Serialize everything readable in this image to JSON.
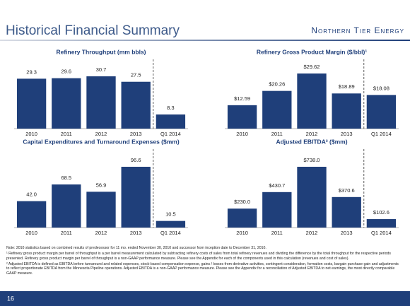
{
  "title": "Historical Financial Summary",
  "logo": "Northern Tier Energy",
  "chart_data": [
    {
      "type": "bar",
      "title": "Refinery Throughput (mm bbls)",
      "color": "#1f3f7a",
      "categories": [
        "2010",
        "2011",
        "2012",
        "2013",
        "Q1 2014"
      ],
      "values": [
        29.3,
        29.6,
        30.7,
        27.5,
        8.3
      ]
    },
    {
      "type": "bar",
      "title": "Refinery Gross Product Margin ($/bbl)¹",
      "color": "#1f3f7a",
      "categories": [
        "2010",
        "2011",
        "2012",
        "2013",
        "Q1 2014"
      ],
      "values": [
        12.59,
        20.26,
        29.62,
        18.89,
        18.08
      ],
      "value_labels": [
        "$12.59",
        "$20.26",
        "$29.62",
        "$18.89",
        "$18.08"
      ]
    },
    {
      "type": "bar",
      "title": "Capital Expenditures and Turnaround Expenses ($mm)",
      "color": "#1f3f7a",
      "categories": [
        "2010",
        "2011",
        "2012",
        "2013",
        "Q1 2014"
      ],
      "values": [
        42.0,
        68.5,
        56.9,
        96.6,
        10.5
      ],
      "value_labels": [
        "42.0",
        "68.5",
        "56.9",
        "96.6",
        "10.5"
      ]
    },
    {
      "type": "bar",
      "title": "Adjusted EBITDA² ($mm)",
      "color": "#1f3f7a",
      "categories": [
        "2010",
        "2011",
        "2012",
        "2013",
        "Q1 2014"
      ],
      "values": [
        230.0,
        430.7,
        738.0,
        370.6,
        102.6
      ],
      "value_labels": [
        "$230.0",
        "$430.7",
        "$738.0",
        "$370.6",
        "$102.6"
      ]
    }
  ],
  "notes": [
    "Note: 2010 statistics based on combined results of predecessor for 11 mo. ended November 30, 2010 and successor from inception date to December 31, 2010.",
    "¹ Refinery gross product margin per barrel of throughput is a per barrel measurement calculated by subtracting refinery costs of sales from total refinery revenues and dividing the difference by the total throughput for the respective periods presented. Refinery gross product margin per barrel of throughput is a non-GAAP performance measure. Please see the Appendix for each of the components used in this calculation (revenues and cost of sales).",
    "² Adjusted EBITDA is defined as EBITDA before turnaround and related expenses, stock-based compensation expense, gains / losses from derivative activities, contingent consideration, formation costs, bargain purchase gain and adjustments to reflect proportionate EBITDA from the Minnesota Pipeline operations. Adjusted EBITDA is a non-GAAP performance measure. Please see the Appendix for a reconciliation of Adjusted EBITDA to net earnings, the most directly comparable GAAP measure."
  ],
  "page_number": "16"
}
